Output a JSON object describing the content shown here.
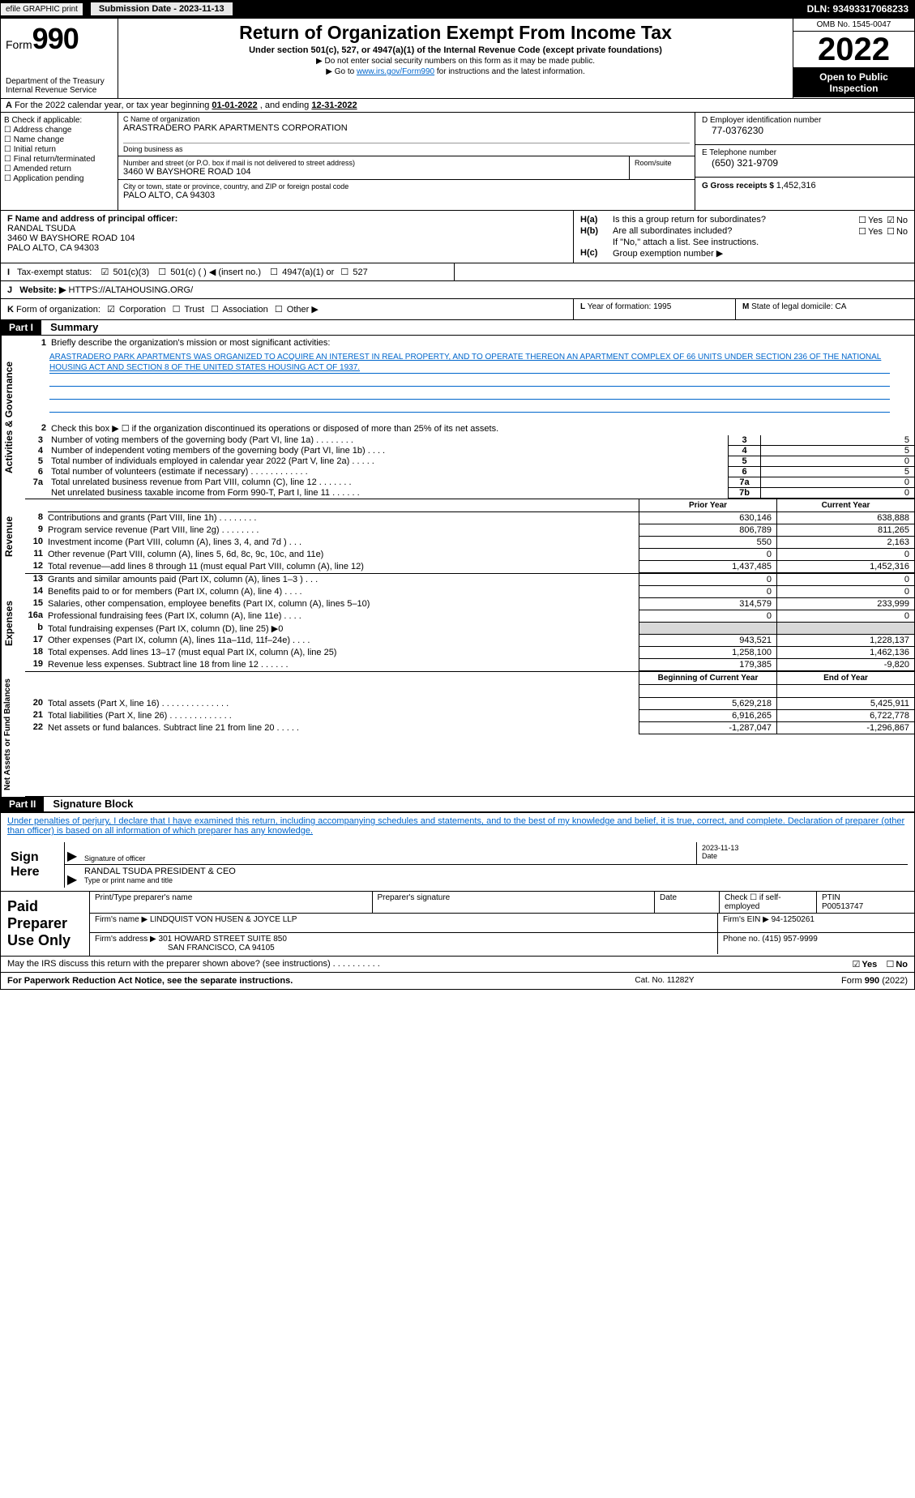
{
  "topbar": {
    "efile": "efile GRAPHIC print",
    "submission_btn": "Submission Date - 2023-11-13",
    "dln": "DLN: 93493317068233"
  },
  "header": {
    "form_label": "Form",
    "form_number": "990",
    "dept": "Department of the Treasury",
    "irs": "Internal Revenue Service",
    "title": "Return of Organization Exempt From Income Tax",
    "subtitle": "Under section 501(c), 527, or 4947(a)(1) of the Internal Revenue Code (except private foundations)",
    "note1": "▶ Do not enter social security numbers on this form as it may be made public.",
    "note2_pre": "▶ Go to ",
    "note2_link": "www.irs.gov/Form990",
    "note2_post": " for instructions and the latest information.",
    "omb": "OMB No. 1545-0047",
    "year": "2022",
    "open": "Open to Public Inspection"
  },
  "row_a": {
    "label_a": "A",
    "text": "For the 2022 calendar year, or tax year beginning ",
    "begin": "01-01-2022",
    "mid": "   , and ending ",
    "end": "12-31-2022"
  },
  "col_b": {
    "label": "B Check if applicable:",
    "items": [
      "Address change",
      "Name change",
      "Initial return",
      "Final return/terminated",
      "Amended return",
      "Application pending"
    ]
  },
  "col_c": {
    "name_lbl": "C Name of organization",
    "name": "ARASTRADERO PARK APARTMENTS CORPORATION",
    "dba_lbl": "Doing business as",
    "street_lbl": "Number and street (or P.O. box if mail is not delivered to street address)",
    "street": "3460 W BAYSHORE ROAD 104",
    "room_lbl": "Room/suite",
    "city_lbl": "City or town, state or province, country, and ZIP or foreign postal code",
    "city": "PALO ALTO, CA  94303"
  },
  "col_d": {
    "lbl": "D Employer identification number",
    "val": "77-0376230"
  },
  "col_e": {
    "lbl": "E Telephone number",
    "val": "(650) 321-9709"
  },
  "col_g": {
    "lbl": "G Gross receipts $ ",
    "val": "1,452,316"
  },
  "col_f": {
    "lbl": "F Name and address of principal officer:",
    "name": "RANDAL TSUDA",
    "addr1": "3460 W BAYSHORE ROAD 104",
    "addr2": "PALO ALTO, CA  94303"
  },
  "col_h": {
    "a_lbl": "H(a)",
    "a_txt": "Is this a group return for subordinates?",
    "a_yes": "Yes",
    "a_no": "No",
    "b_lbl": "H(b)",
    "b_txt": "Are all subordinates included?",
    "b_yes": "Yes",
    "b_no": "No",
    "b_note": "If \"No,\" attach a list. See instructions.",
    "c_lbl": "H(c)",
    "c_txt": "Group exemption number ▶"
  },
  "col_i": {
    "lbl": "I",
    "txt": "Tax-exempt status:",
    "o1": "501(c)(3)",
    "o2": "501(c) (   ) ◀ (insert no.)",
    "o3": "4947(a)(1) or",
    "o4": "527"
  },
  "col_j": {
    "lbl": "J",
    "txt": "Website: ▶ ",
    "val": "HTTPS://ALTAHOUSING.ORG/"
  },
  "col_k": {
    "lbl": "K",
    "txt": "Form of organization:",
    "o1": "Corporation",
    "o2": "Trust",
    "o3": "Association",
    "o4": "Other ▶"
  },
  "col_l": {
    "lbl": "L",
    "txt": "Year of formation: ",
    "val": "1995"
  },
  "col_m": {
    "lbl": "M",
    "txt": "State of legal domicile: ",
    "val": "CA"
  },
  "part1": {
    "hdr": "Part I",
    "title": "Summary"
  },
  "mission": {
    "n": "1",
    "lbl": "Briefly describe the organization's mission or most significant activities:",
    "text": "ARASTRADERO PARK APARTMENTS WAS ORGANIZED TO ACQUIRE AN INTEREST IN REAL PROPERTY, AND TO OPERATE THEREON AN APARTMENT COMPLEX OF 66 UNITS UNDER SECTION 236 OF THE NATIONAL HOUSING ACT AND SECTION 8 OF THE UNITED STATES HOUSING ACT OF 1937."
  },
  "gov": {
    "l2": "Check this box ▶ ☐  if the organization discontinued its operations or disposed of more than 25% of its net assets.",
    "rows": [
      {
        "n": "3",
        "t": "Number of voting members of the governing body (Part VI, line 1a)   .    .    .    .    .    .    .    .",
        "bn": "3",
        "v": "5"
      },
      {
        "n": "4",
        "t": "Number of independent voting members of the governing body (Part VI, line 1b)   .    .    .    .",
        "bn": "4",
        "v": "5"
      },
      {
        "n": "5",
        "t": "Total number of individuals employed in calendar year 2022 (Part V, line 2a)   .    .    .    .    .",
        "bn": "5",
        "v": "0"
      },
      {
        "n": "6",
        "t": "Total number of volunteers (estimate if necessary)    .    .    .    .    .    .    .    .    .    .    .    .",
        "bn": "6",
        "v": "5"
      },
      {
        "n": "7a",
        "t": "Total unrelated business revenue from Part VIII, column (C), line 12    .    .    .    .    .    .    .",
        "bn": "7a",
        "v": "0"
      },
      {
        "n": "",
        "t": "Net unrelated business taxable income from Form 990-T, Part I, line 11    .    .    .    .    .    .",
        "bn": "7b",
        "v": "0"
      }
    ],
    "side": "Activities & Governance"
  },
  "twocol_hdr": {
    "prior": "Prior Year",
    "current": "Current Year"
  },
  "rev": {
    "side": "Revenue",
    "rows": [
      {
        "n": "8",
        "t": "Contributions and grants (Part VIII, line 1h)    .    .    .    .    .    .    .    .",
        "p": "630,146",
        "c": "638,888"
      },
      {
        "n": "9",
        "t": "Program service revenue (Part VIII, line 2g)    .    .    .    .    .    .    .    .",
        "p": "806,789",
        "c": "811,265"
      },
      {
        "n": "10",
        "t": "Investment income (Part VIII, column (A), lines 3, 4, and 7d )   .    .    .",
        "p": "550",
        "c": "2,163"
      },
      {
        "n": "11",
        "t": "Other revenue (Part VIII, column (A), lines 5, 6d, 8c, 9c, 10c, and 11e)",
        "p": "0",
        "c": "0"
      },
      {
        "n": "12",
        "t": "Total revenue—add lines 8 through 11 (must equal Part VIII, column (A), line 12)",
        "p": "1,437,485",
        "c": "1,452,316"
      }
    ]
  },
  "exp": {
    "side": "Expenses",
    "rows": [
      {
        "n": "13",
        "t": "Grants and similar amounts paid (Part IX, column (A), lines 1–3 )   .    .    .",
        "p": "0",
        "c": "0"
      },
      {
        "n": "14",
        "t": "Benefits paid to or for members (Part IX, column (A), line 4)   .    .    .    .",
        "p": "0",
        "c": "0"
      },
      {
        "n": "15",
        "t": "Salaries, other compensation, employee benefits (Part IX, column (A), lines 5–10)",
        "p": "314,579",
        "c": "233,999"
      },
      {
        "n": "16a",
        "t": "Professional fundraising fees (Part IX, column (A), line 11e)   .    .    .    .",
        "p": "0",
        "c": "0"
      },
      {
        "n": "b",
        "t": "Total fundraising expenses (Part IX, column (D), line 25) ▶0",
        "p": "",
        "c": "",
        "shade": true
      },
      {
        "n": "17",
        "t": "Other expenses (Part IX, column (A), lines 11a–11d, 11f–24e)    .    .    .    .",
        "p": "943,521",
        "c": "1,228,137"
      },
      {
        "n": "18",
        "t": "Total expenses. Add lines 13–17 (must equal Part IX, column (A), line 25)",
        "p": "1,258,100",
        "c": "1,462,136"
      },
      {
        "n": "19",
        "t": "Revenue less expenses. Subtract line 18 from line 12    .    .    .    .    .    .",
        "p": "179,385",
        "c": "-9,820"
      }
    ]
  },
  "net": {
    "side": "Net Assets or Fund Balances",
    "hdr_p": "Beginning of Current Year",
    "hdr_c": "End of Year",
    "rows": [
      {
        "n": "20",
        "t": "Total assets (Part X, line 16)    .    .    .    .    .    .    .    .    .    .    .    .    .    .",
        "p": "5,629,218",
        "c": "5,425,911"
      },
      {
        "n": "21",
        "t": "Total liabilities (Part X, line 26)   .    .    .    .    .    .    .    .    .    .    .    .    .",
        "p": "6,916,265",
        "c": "6,722,778"
      },
      {
        "n": "22",
        "t": "Net assets or fund balances. Subtract line 21 from line 20    .    .    .    .    .",
        "p": "-1,287,047",
        "c": "-1,296,867"
      }
    ]
  },
  "part2": {
    "hdr": "Part II",
    "title": "Signature Block"
  },
  "sig": {
    "perjury": "Under penalties of perjury, I declare that I have examined this return, including accompanying schedules and statements, and to the best of my knowledge and belief, it is true, correct, and complete. Declaration of preparer (other than officer) is based on all information of which preparer has any knowledge.",
    "sign_here": "Sign Here",
    "sig_officer": "Signature of officer",
    "date": "Date",
    "date_val": "2023-11-13",
    "name": "RANDAL TSUDA  PRESIDENT & CEO",
    "name_lbl": "Type or print name and title"
  },
  "paid": {
    "lbl": "Paid Preparer Use Only",
    "h1": "Print/Type preparer's name",
    "h2": "Preparer's signature",
    "h3": "Date",
    "h4_pre": "Check ☐ if self-employed",
    "h5": "PTIN",
    "ptin": "P00513747",
    "firm_lbl": "Firm's name    ▶ ",
    "firm": "LINDQUIST VON HUSEN & JOYCE LLP",
    "ein_lbl": "Firm's EIN ▶ ",
    "ein": "94-1250261",
    "addr_lbl": "Firm's address ▶ ",
    "addr1": "301 HOWARD STREET SUITE 850",
    "addr2": "SAN FRANCISCO, CA  94105",
    "phone_lbl": "Phone no. ",
    "phone": "(415) 957-9999",
    "discuss": "May the IRS discuss this return with the preparer shown above? (see instructions)    .    .    .    .    .    .    .    .    .    .",
    "d_yes": "Yes",
    "d_no": "No"
  },
  "footer": {
    "left": "For Paperwork Reduction Act Notice, see the separate instructions.",
    "mid": "Cat. No. 11282Y",
    "right_pre": "Form ",
    "right_b": "990",
    "right_post": " (2022)"
  }
}
